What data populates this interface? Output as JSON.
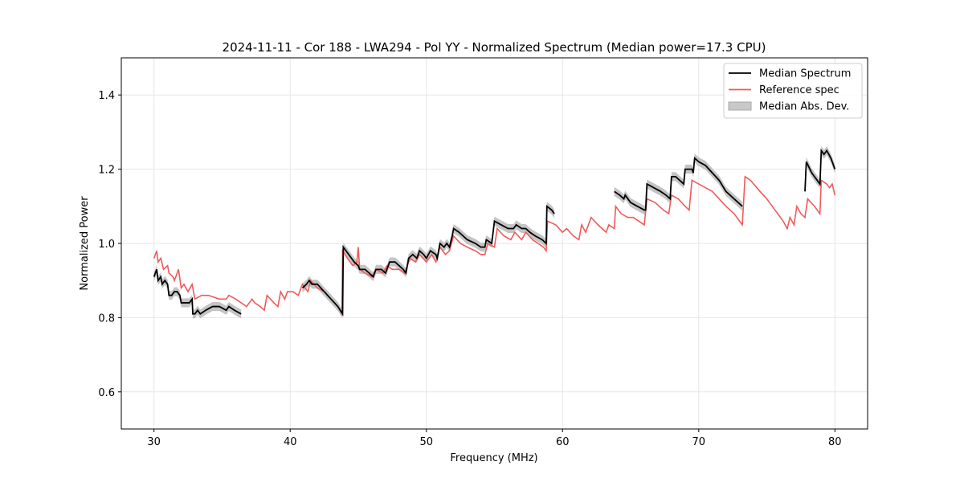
{
  "chart_data": {
    "type": "line",
    "title": "2024-11-11 - Cor 188 - LWA294 - Pol YY - Normalized Spectrum (Median power=17.3 CPU)",
    "xlabel": "Frequency (MHz)",
    "ylabel": "Normalized Power",
    "xlim": [
      27.6,
      82.4
    ],
    "ylim": [
      0.5,
      1.5
    ],
    "xticks": [
      30,
      40,
      50,
      60,
      70,
      80
    ],
    "yticks": [
      0.6,
      0.8,
      1.0,
      1.2,
      1.4
    ],
    "xtick_labels": [
      "30",
      "40",
      "50",
      "60",
      "70",
      "80"
    ],
    "ytick_labels": [
      "0.6",
      "0.8",
      "1.0",
      "1.2",
      "1.4"
    ],
    "grid": true,
    "legend_position": "top-right",
    "legend": [
      {
        "label": "Median Spectrum",
        "kind": "line",
        "color": "#000000"
      },
      {
        "label": "Reference spec",
        "kind": "line",
        "color": "#f05a5a"
      },
      {
        "label": "Median Abs. Dev.",
        "kind": "band",
        "color": "#b0b0b0"
      }
    ],
    "series": [
      {
        "name": "Reference spec",
        "color": "#f05a5a",
        "segments": [
          [
            [
              30.0,
              0.96
            ],
            [
              30.2,
              0.98
            ],
            [
              30.3,
              0.95
            ],
            [
              30.5,
              0.96
            ],
            [
              30.7,
              0.93
            ],
            [
              31.0,
              0.94
            ],
            [
              31.1,
              0.92
            ],
            [
              31.4,
              0.91
            ],
            [
              31.5,
              0.9
            ],
            [
              31.8,
              0.93
            ],
            [
              32.0,
              0.88
            ],
            [
              32.2,
              0.89
            ],
            [
              32.5,
              0.87
            ],
            [
              32.8,
              0.89
            ],
            [
              33.0,
              0.85
            ],
            [
              33.5,
              0.86
            ],
            [
              34.0,
              0.86
            ],
            [
              34.8,
              0.85
            ],
            [
              35.3,
              0.85
            ],
            [
              35.5,
              0.86
            ],
            [
              36.0,
              0.85
            ],
            [
              36.4,
              0.84
            ],
            [
              36.8,
              0.83
            ],
            [
              37.2,
              0.85
            ],
            [
              37.4,
              0.84
            ],
            [
              37.8,
              0.83
            ],
            [
              38.1,
              0.82
            ],
            [
              38.3,
              0.86
            ],
            [
              38.8,
              0.84
            ],
            [
              39.1,
              0.83
            ],
            [
              39.3,
              0.87
            ],
            [
              39.6,
              0.85
            ],
            [
              39.8,
              0.87
            ],
            [
              40.2,
              0.87
            ],
            [
              40.6,
              0.86
            ],
            [
              40.9,
              0.89
            ],
            [
              41.3,
              0.87
            ],
            [
              41.5,
              0.9
            ],
            [
              42.0,
              0.88
            ],
            [
              42.5,
              0.87
            ],
            [
              43.0,
              0.85
            ],
            [
              43.5,
              0.83
            ],
            [
              43.8,
              0.81
            ],
            [
              43.85,
              0.98
            ],
            [
              44.2,
              0.96
            ],
            [
              44.6,
              0.94
            ],
            [
              44.9,
              0.95
            ],
            [
              45.0,
              0.99
            ],
            [
              45.1,
              0.93
            ],
            [
              45.5,
              0.92
            ],
            [
              46.0,
              0.91
            ],
            [
              46.3,
              0.93
            ],
            [
              46.8,
              0.92
            ],
            [
              47.1,
              0.94
            ],
            [
              47.5,
              0.93
            ],
            [
              48.0,
              0.93
            ],
            [
              48.4,
              0.92
            ],
            [
              48.8,
              0.96
            ],
            [
              49.2,
              0.95
            ],
            [
              49.5,
              0.97
            ],
            [
              50.0,
              0.95
            ],
            [
              50.4,
              0.97
            ],
            [
              50.7,
              0.95
            ],
            [
              51.0,
              0.99
            ],
            [
              51.4,
              0.97
            ],
            [
              51.7,
              0.98
            ],
            [
              52.0,
              1.02
            ],
            [
              52.5,
              1.0
            ],
            [
              53.0,
              0.99
            ],
            [
              53.6,
              0.98
            ],
            [
              54.0,
              0.97
            ],
            [
              54.3,
              0.97
            ],
            [
              54.5,
              1.0
            ],
            [
              55.0,
              0.99
            ],
            [
              55.2,
              1.04
            ],
            [
              55.7,
              1.02
            ],
            [
              56.2,
              1.01
            ],
            [
              56.5,
              1.03
            ],
            [
              57.0,
              1.01
            ],
            [
              57.3,
              1.03
            ],
            [
              57.8,
              1.01
            ],
            [
              58.2,
              1.0
            ],
            [
              58.6,
              0.99
            ],
            [
              58.8,
              0.98
            ],
            [
              58.9,
              1.06
            ],
            [
              59.5,
              1.05
            ],
            [
              60.0,
              1.03
            ],
            [
              60.3,
              1.04
            ],
            [
              60.8,
              1.02
            ],
            [
              61.2,
              1.01
            ],
            [
              61.4,
              1.05
            ],
            [
              61.7,
              1.03
            ],
            [
              62.1,
              1.07
            ],
            [
              62.6,
              1.05
            ],
            [
              63.2,
              1.03
            ],
            [
              63.4,
              1.05
            ],
            [
              63.8,
              1.04
            ],
            [
              63.9,
              1.1
            ],
            [
              64.3,
              1.08
            ],
            [
              64.8,
              1.07
            ],
            [
              65.2,
              1.07
            ],
            [
              65.6,
              1.06
            ],
            [
              66.0,
              1.05
            ],
            [
              66.2,
              1.12
            ],
            [
              66.8,
              1.11
            ],
            [
              67.4,
              1.09
            ],
            [
              67.8,
              1.08
            ],
            [
              68.0,
              1.13
            ],
            [
              68.5,
              1.12
            ],
            [
              69.0,
              1.1
            ],
            [
              69.3,
              1.09
            ],
            [
              69.5,
              1.17
            ],
            [
              70.0,
              1.16
            ],
            [
              70.5,
              1.15
            ],
            [
              71.0,
              1.14
            ],
            [
              71.5,
              1.12
            ],
            [
              72.0,
              1.1
            ],
            [
              72.6,
              1.08
            ],
            [
              73.2,
              1.05
            ],
            [
              73.4,
              1.18
            ],
            [
              73.8,
              1.17
            ],
            [
              74.5,
              1.14
            ],
            [
              75.0,
              1.12
            ],
            [
              75.4,
              1.1
            ],
            [
              75.8,
              1.08
            ],
            [
              76.2,
              1.06
            ],
            [
              76.5,
              1.04
            ],
            [
              76.7,
              1.07
            ],
            [
              77.0,
              1.05
            ],
            [
              77.2,
              1.1
            ],
            [
              77.5,
              1.08
            ],
            [
              77.8,
              1.07
            ],
            [
              78.0,
              1.12
            ],
            [
              78.5,
              1.1
            ],
            [
              78.9,
              1.08
            ],
            [
              79.0,
              1.17
            ],
            [
              79.4,
              1.16
            ],
            [
              79.6,
              1.15
            ],
            [
              79.8,
              1.16
            ],
            [
              80.0,
              1.13
            ]
          ]
        ]
      },
      {
        "name": "Median Spectrum",
        "color": "#000000",
        "segments": [
          [
            [
              30.0,
              0.91
            ],
            [
              30.2,
              0.93
            ],
            [
              30.3,
              0.9
            ],
            [
              30.5,
              0.91
            ],
            [
              30.6,
              0.89
            ],
            [
              30.8,
              0.9
            ],
            [
              31.0,
              0.89
            ],
            [
              31.1,
              0.86
            ],
            [
              31.3,
              0.86
            ],
            [
              31.5,
              0.87
            ],
            [
              31.7,
              0.87
            ],
            [
              31.9,
              0.86
            ],
            [
              32.0,
              0.84
            ],
            [
              32.3,
              0.84
            ],
            [
              32.6,
              0.84
            ],
            [
              32.8,
              0.85
            ],
            [
              32.85,
              0.81
            ],
            [
              33.0,
              0.81
            ],
            [
              33.2,
              0.82
            ],
            [
              33.4,
              0.81
            ],
            [
              33.8,
              0.82
            ],
            [
              34.3,
              0.83
            ],
            [
              34.8,
              0.83
            ],
            [
              35.3,
              0.82
            ],
            [
              35.5,
              0.83
            ],
            [
              35.9,
              0.82
            ],
            [
              36.4,
              0.81
            ]
          ],
          [
            [
              40.9,
              0.88
            ],
            [
              41.2,
              0.89
            ],
            [
              41.4,
              0.9
            ],
            [
              41.6,
              0.89
            ],
            [
              42.0,
              0.89
            ],
            [
              42.5,
              0.87
            ],
            [
              43.0,
              0.85
            ],
            [
              43.5,
              0.83
            ],
            [
              43.85,
              0.81
            ],
            [
              43.9,
              0.99
            ],
            [
              44.3,
              0.97
            ],
            [
              44.7,
              0.95
            ],
            [
              45.0,
              0.94
            ],
            [
              45.1,
              0.93
            ],
            [
              45.5,
              0.93
            ],
            [
              45.8,
              0.92
            ],
            [
              46.1,
              0.91
            ],
            [
              46.3,
              0.93
            ],
            [
              46.7,
              0.93
            ],
            [
              47.0,
              0.92
            ],
            [
              47.3,
              0.95
            ],
            [
              47.7,
              0.95
            ],
            [
              48.0,
              0.94
            ],
            [
              48.3,
              0.93
            ],
            [
              48.5,
              0.92
            ],
            [
              48.7,
              0.96
            ],
            [
              49.0,
              0.97
            ],
            [
              49.3,
              0.96
            ],
            [
              49.5,
              0.98
            ],
            [
              49.8,
              0.97
            ],
            [
              50.0,
              0.96
            ],
            [
              50.3,
              0.98
            ],
            [
              50.7,
              0.97
            ],
            [
              50.8,
              0.96
            ],
            [
              51.0,
              1.0
            ],
            [
              51.3,
              0.99
            ],
            [
              51.5,
              1.0
            ],
            [
              51.7,
              0.99
            ],
            [
              51.9,
              1.02
            ],
            [
              52.0,
              1.04
            ],
            [
              52.4,
              1.03
            ],
            [
              53.0,
              1.01
            ],
            [
              53.6,
              1.0
            ],
            [
              54.0,
              0.99
            ],
            [
              54.3,
              0.99
            ],
            [
              54.4,
              1.01
            ],
            [
              54.8,
              1.0
            ],
            [
              55.0,
              1.06
            ],
            [
              55.5,
              1.05
            ],
            [
              56.0,
              1.04
            ],
            [
              56.4,
              1.04
            ],
            [
              56.6,
              1.05
            ],
            [
              57.0,
              1.04
            ],
            [
              57.3,
              1.04
            ],
            [
              57.6,
              1.03
            ],
            [
              58.0,
              1.02
            ],
            [
              58.5,
              1.01
            ],
            [
              58.8,
              1.0
            ],
            [
              58.85,
              1.1
            ],
            [
              59.2,
              1.09
            ],
            [
              59.4,
              1.08
            ]
          ],
          [
            [
              63.8,
              1.14
            ],
            [
              64.2,
              1.13
            ],
            [
              64.5,
              1.12
            ],
            [
              64.6,
              1.13
            ],
            [
              65.0,
              1.11
            ],
            [
              65.5,
              1.1
            ],
            [
              66.0,
              1.09
            ],
            [
              66.1,
              1.09
            ],
            [
              66.2,
              1.16
            ],
            [
              66.7,
              1.15
            ],
            [
              67.2,
              1.14
            ],
            [
              67.6,
              1.13
            ],
            [
              67.9,
              1.12
            ],
            [
              68.0,
              1.18
            ],
            [
              68.3,
              1.18
            ],
            [
              68.6,
              1.17
            ],
            [
              68.9,
              1.16
            ],
            [
              69.0,
              1.2
            ],
            [
              69.5,
              1.2
            ],
            [
              69.6,
              1.19
            ],
            [
              69.7,
              1.23
            ],
            [
              70.0,
              1.22
            ],
            [
              70.5,
              1.21
            ],
            [
              71.0,
              1.19
            ],
            [
              71.5,
              1.17
            ],
            [
              72.0,
              1.14
            ],
            [
              72.6,
              1.12
            ],
            [
              73.2,
              1.1
            ]
          ],
          [
            [
              77.8,
              1.14
            ],
            [
              77.9,
              1.22
            ],
            [
              78.3,
              1.19
            ],
            [
              78.7,
              1.17
            ],
            [
              78.9,
              1.16
            ],
            [
              79.0,
              1.25
            ],
            [
              79.2,
              1.24
            ],
            [
              79.4,
              1.25
            ],
            [
              79.7,
              1.23
            ],
            [
              80.0,
              1.2
            ]
          ]
        ]
      }
    ],
    "mad_band": {
      "name": "Median Abs. Dev.",
      "color": "#b0b0b0",
      "half_width": 0.012
    }
  }
}
